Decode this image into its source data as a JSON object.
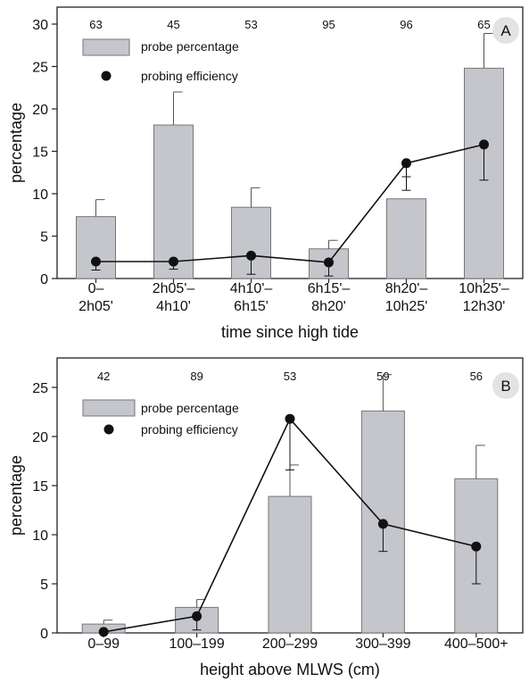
{
  "chart_data": [
    {
      "type": "bar",
      "panel_label": "A",
      "categories": [
        [
          "0–",
          "2h05'"
        ],
        [
          "2h05'–",
          "4h10'"
        ],
        [
          "4h10'–",
          "6h15'"
        ],
        [
          "6h15'–",
          "8h20'"
        ],
        [
          "8h20'–",
          "10h25'"
        ],
        [
          "10h25'–",
          "12h30'"
        ]
      ],
      "n_labels": [
        "63",
        "45",
        "53",
        "95",
        "96",
        "65"
      ],
      "xlabel": "time since high tide",
      "ylabel": "percentage",
      "ylim": [
        0,
        32
      ],
      "yticks": [
        0,
        5,
        10,
        15,
        20,
        25,
        30
      ],
      "legend": {
        "position": "top-left",
        "bar_label": "probe percentage",
        "point_label": "probing efficiency"
      },
      "series": [
        {
          "name": "probe percentage",
          "kind": "bar",
          "values": [
            7.3,
            18.1,
            8.4,
            3.5,
            9.4,
            24.8
          ],
          "err_upper": [
            9.3,
            22.0,
            10.7,
            4.5,
            null,
            28.9
          ]
        },
        {
          "name": "probing efficiency",
          "kind": "line",
          "values": [
            2.0,
            2.0,
            2.7,
            1.9,
            13.6,
            15.8
          ],
          "err_upper": [
            null,
            null,
            null,
            null,
            12.0,
            null
          ],
          "err_lower": [
            1.0,
            1.1,
            0.5,
            0.3,
            10.4,
            11.6
          ]
        }
      ],
      "grid": false,
      "colors": {
        "bar": "#c4c6cb",
        "bar_edge": "#777777",
        "line": "#111111"
      }
    },
    {
      "type": "bar",
      "panel_label": "B",
      "categories": [
        [
          "0–99"
        ],
        [
          "100–199"
        ],
        [
          "200–299"
        ],
        [
          "300–399"
        ],
        [
          "400–500+"
        ]
      ],
      "n_labels": [
        "42",
        "89",
        "53",
        "59",
        "56"
      ],
      "xlabel": "height above MLWS (cm)",
      "ylabel": "percentage",
      "ylim": [
        0,
        28
      ],
      "yticks": [
        0,
        5,
        10,
        15,
        20,
        25
      ],
      "legend": {
        "position": "top-left",
        "bar_label": "probe percentage",
        "point_label": "probing efficiency"
      },
      "series": [
        {
          "name": "probe percentage",
          "kind": "bar",
          "values": [
            0.9,
            2.6,
            13.9,
            22.6,
            15.7
          ],
          "err_upper": [
            1.3,
            3.4,
            17.1,
            26.3,
            19.1
          ]
        },
        {
          "name": "probing efficiency",
          "kind": "line",
          "values": [
            0.1,
            1.7,
            21.8,
            11.1,
            8.8
          ],
          "err_upper": [
            null,
            null,
            null,
            null,
            null
          ],
          "err_lower": [
            null,
            0.3,
            16.6,
            8.3,
            5.0
          ]
        }
      ],
      "grid": false,
      "colors": {
        "bar": "#c4c6cb",
        "bar_edge": "#777777",
        "line": "#111111"
      }
    }
  ]
}
